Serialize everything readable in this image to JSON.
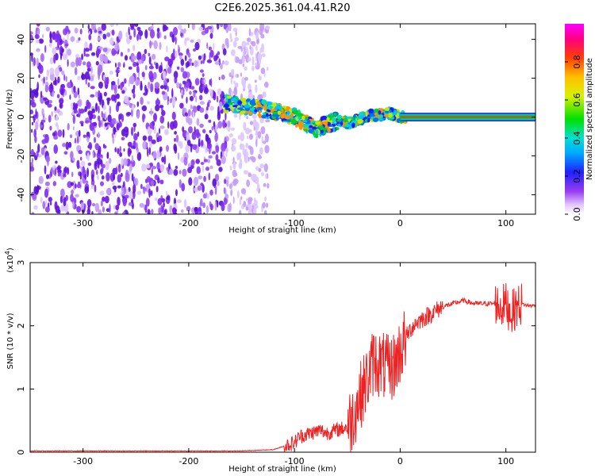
{
  "title": "C2E6.2025.361.04.41.R20",
  "colors": {
    "snr_line": "#ee2222",
    "frame": "#000000",
    "ridge": "#ff2a2a",
    "noise": "#7a1ee8"
  },
  "chart_data": [
    {
      "id": "spectrogram",
      "type": "heatmap",
      "title": "C2E6.2025.361.04.41.R20",
      "xlabel": "Height of straight line (km)",
      "ylabel": "Frequency (Hz)",
      "xlim": [
        -350,
        128
      ],
      "ylim": [
        -50,
        48
      ],
      "x_ticks": [
        -300,
        -200,
        -100,
        0,
        100
      ],
      "y_ticks": [
        -40,
        -20,
        0,
        20,
        40
      ],
      "colorbar": {
        "label": "Normalized spectral amplitude",
        "range": [
          0,
          1
        ],
        "ticks": [
          0.0,
          0.2,
          0.4,
          0.6,
          0.8
        ]
      },
      "features": {
        "noise_region_x": [
          -350,
          -145
        ],
        "signal_ridge": {
          "x": [
            -165,
            -140,
            -120,
            -100,
            -80,
            -60,
            -45,
            -30,
            -20,
            -10,
            0,
            20,
            60,
            100,
            128
          ],
          "y": [
            7,
            5,
            3,
            0,
            -6,
            -2,
            -3,
            1,
            1,
            2,
            0,
            0,
            0,
            0,
            0
          ]
        }
      }
    },
    {
      "id": "snr",
      "type": "line",
      "xlabel": "Height of straight line (km)",
      "ylabel": "SNR (10 * v/v)",
      "y_multiplier_label": "(x10",
      "y_multiplier_exp": "4",
      "xlim": [
        -350,
        128
      ],
      "ylim": [
        0,
        3
      ],
      "x_ticks": [
        -300,
        -200,
        -100,
        0,
        100
      ],
      "y_ticks": [
        0,
        1,
        2,
        3
      ],
      "series": [
        {
          "x": [
            -350,
            -250,
            -150,
            -120,
            -100,
            -95,
            -85,
            -75,
            -70,
            -60,
            -50,
            -45,
            -40,
            -35,
            -30,
            -25,
            -20,
            -15,
            -10,
            -5,
            0,
            5,
            10,
            15,
            20,
            30,
            40,
            50,
            60,
            70,
            80,
            90,
            95,
            100,
            105,
            110,
            115,
            120,
            128
          ],
          "y": [
            0.02,
            0.02,
            0.02,
            0.04,
            0.15,
            0.25,
            0.3,
            0.35,
            0.3,
            0.35,
            0.4,
            0.55,
            0.8,
            1.0,
            1.2,
            1.45,
            1.4,
            1.35,
            1.3,
            1.4,
            1.6,
            1.8,
            1.95,
            2.05,
            2.1,
            2.2,
            2.3,
            2.35,
            2.4,
            2.35,
            2.35,
            2.35,
            2.3,
            2.35,
            2.2,
            2.3,
            2.35,
            2.32,
            2.32
          ]
        }
      ]
    }
  ]
}
